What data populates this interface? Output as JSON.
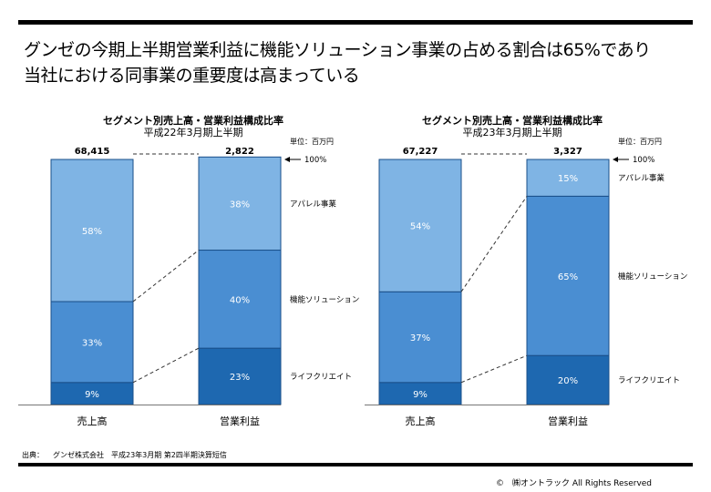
{
  "headline": {
    "line1": "グンゼの今期上半期営業利益に機能ソリューション事業の占める割合は65%であり",
    "line2": "当社における同事業の重要度は高まっている"
  },
  "footer": {
    "source_label": "出典：",
    "source_text": "グンゼ株式会社　平成23年3月期 第2四半期決算短信",
    "copyright": "©　㈱オントラック  All Rights Reserved"
  },
  "colors": {
    "apparel": "#7FB4E4",
    "functional": "#4A8ED2",
    "life": "#1E68B0",
    "border": "#1A4F8A"
  },
  "chart_data": [
    {
      "type": "bar",
      "stacked": true,
      "normalized": true,
      "title": "セグメント別売上高・営業利益構成比率",
      "subtitle": "平成22年3月期上半期",
      "unit_label": "単位：百万円",
      "categories": [
        "売上高",
        "営業利益"
      ],
      "totals": [
        "68,415",
        "2,822"
      ],
      "hundred_label": "100%",
      "series": [
        {
          "name": "ライフクリエイト",
          "values": [
            9,
            23
          ]
        },
        {
          "name": "機能ソリューション",
          "values": [
            33,
            40
          ]
        },
        {
          "name": "アパレル事業",
          "values": [
            58,
            38
          ]
        }
      ]
    },
    {
      "type": "bar",
      "stacked": true,
      "normalized": true,
      "title": "セグメント別売上高・営業利益構成比率",
      "subtitle": "平成23年3月期上半期",
      "unit_label": "単位：百万円",
      "categories": [
        "売上高",
        "営業利益"
      ],
      "totals": [
        "67,227",
        "3,327"
      ],
      "hundred_label": "100%",
      "series": [
        {
          "name": "ライフクリエイト",
          "values": [
            9,
            20
          ]
        },
        {
          "name": "機能ソリューション",
          "values": [
            37,
            65
          ]
        },
        {
          "name": "アパレル事業",
          "values": [
            54,
            15
          ]
        }
      ]
    }
  ]
}
